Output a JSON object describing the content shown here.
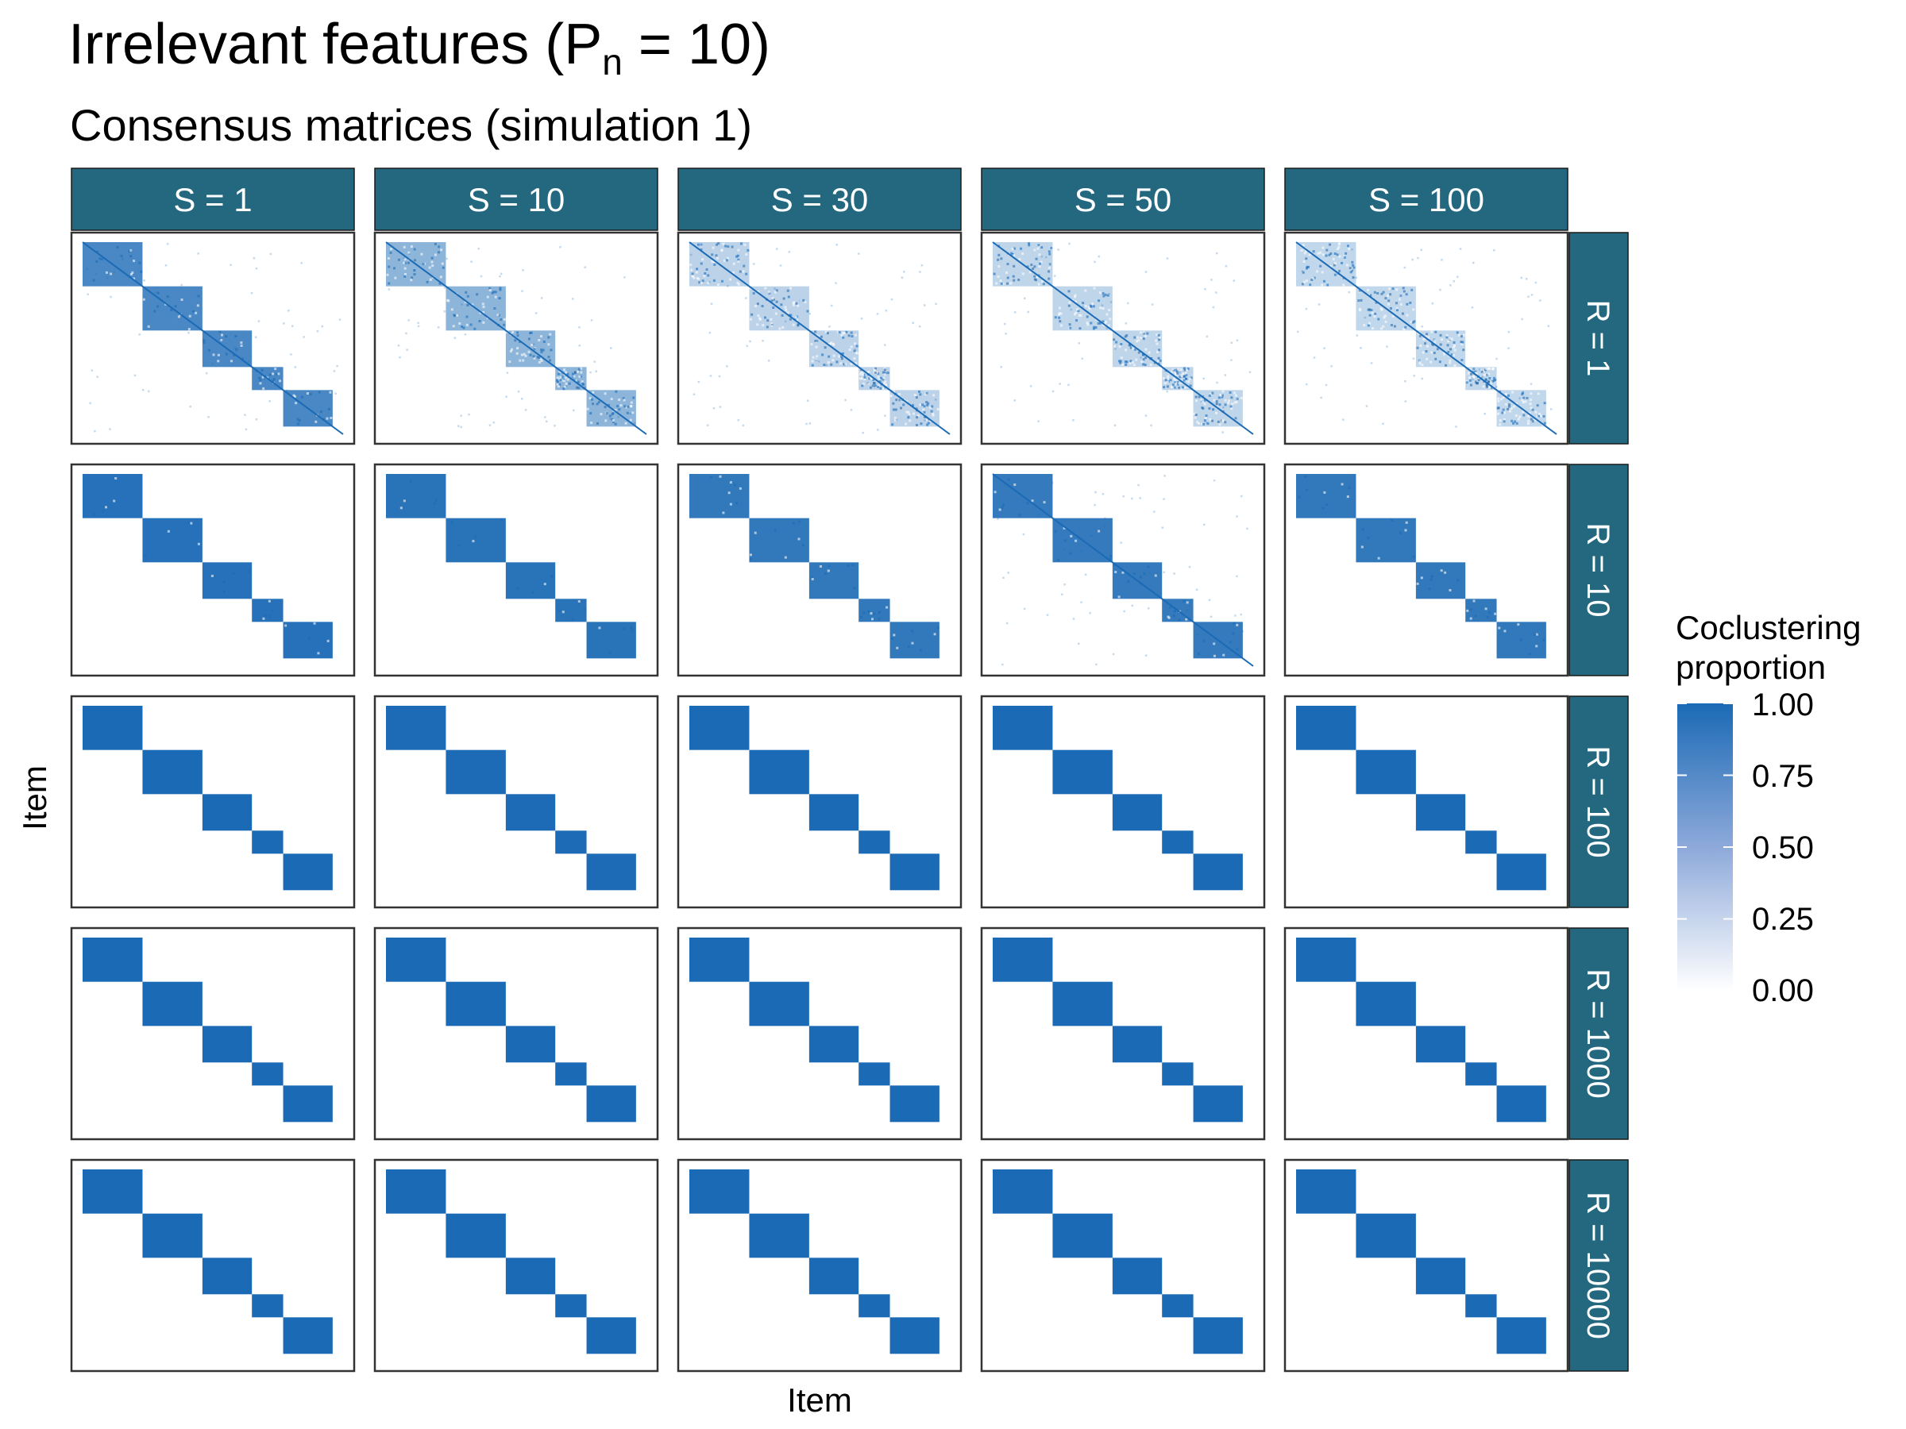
{
  "title_main": "Irrelevant features (P",
  "title_sub": "n",
  "title_tail": " = 10)",
  "subtitle": "Consensus matrices (simulation 1)",
  "colors": {
    "strip": "#246880",
    "strip_text": "#ffffff",
    "high": "#1b6ab5",
    "low": "#ffffff",
    "panel_border": "#333333"
  },
  "chart_data": {
    "type": "heatmap",
    "xlabel": "Item",
    "ylabel": "Item",
    "column_facets": [
      "S = 1",
      "S = 10",
      "S = 30",
      "S = 50",
      "S = 100"
    ],
    "row_facets": [
      "R = 1",
      "R = 10",
      "R = 100",
      "R = 1000",
      "R = 10000"
    ],
    "cluster_proportions": [
      0.23,
      0.23,
      0.19,
      0.12,
      0.19
    ],
    "legend": {
      "title_lines": [
        "Coclustering",
        "proportion"
      ],
      "range": [
        0,
        1
      ],
      "breaks": [
        "1.00",
        "0.75",
        "0.50",
        "0.25",
        "0.00"
      ],
      "placement": "right"
    },
    "within_cluster_coclustering": [
      [
        0.8,
        0.5,
        0.3,
        0.28,
        0.27
      ],
      [
        0.95,
        0.94,
        0.9,
        0.89,
        0.9
      ],
      [
        1.0,
        0.99,
        1.0,
        1.0,
        1.0
      ],
      [
        1.0,
        1.0,
        1.0,
        1.0,
        1.0
      ],
      [
        1.0,
        1.0,
        1.0,
        1.0,
        1.0
      ]
    ]
  }
}
